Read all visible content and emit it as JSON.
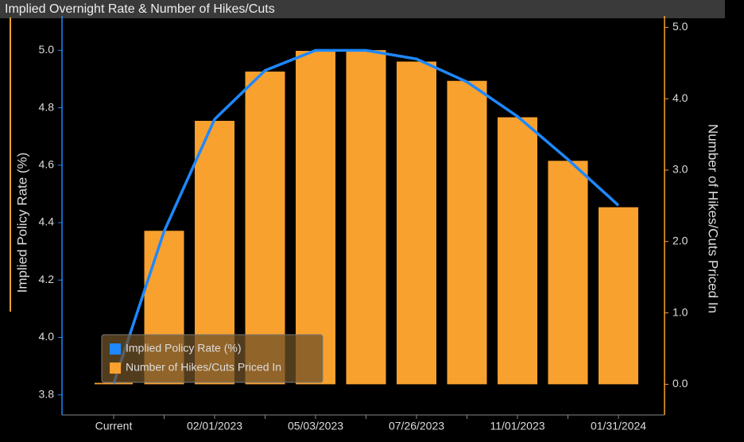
{
  "chart_data": {
    "type": "bar_line",
    "title": "Implied Overnight Rate & Number of Hikes/Cuts",
    "y_label": "Implied Policy Rate (%)",
    "y2_label": "Number of Hikes/Cuts Priced In",
    "categories": [
      "Current",
      null,
      "02/01/2023",
      null,
      "05/03/2023",
      null,
      "07/26/2023",
      null,
      "11/01/2023",
      null,
      "01/31/2024"
    ],
    "series": [
      {
        "name": "Implied Policy Rate (%)",
        "type": "line",
        "color": "#1e88ff",
        "axis": "y",
        "values": [
          3.84,
          4.37,
          4.76,
          4.93,
          5.0,
          5.0,
          4.97,
          4.89,
          4.77,
          4.62,
          4.46
        ]
      },
      {
        "name": "Number of Hikes/Cuts Priced In",
        "type": "bar",
        "color": "#f9a12e",
        "axis": "y2",
        "values": [
          0.02,
          2.15,
          3.69,
          4.38,
          4.67,
          4.68,
          4.52,
          4.25,
          3.74,
          3.13,
          2.48
        ]
      }
    ],
    "ylim": [
      3.73,
      5.12
    ],
    "yticks": [
      3.8,
      {
        "value": 4,
        "label": "4.0"
      },
      4.2,
      4.4,
      4.6,
      4.8,
      {
        "value": 5,
        "label": "5.0"
      }
    ],
    "y2lim": [
      -0.43,
      5.16
    ],
    "y2ticks": [
      {
        "value": 0,
        "label": "0.0"
      },
      {
        "value": 1,
        "label": "1.0"
      },
      {
        "value": 2,
        "label": "2.0"
      },
      {
        "value": 3,
        "label": "3.0"
      },
      {
        "value": 4,
        "label": "4.0"
      },
      {
        "value": 5,
        "label": "5.0"
      }
    ],
    "legend": "lower left"
  }
}
